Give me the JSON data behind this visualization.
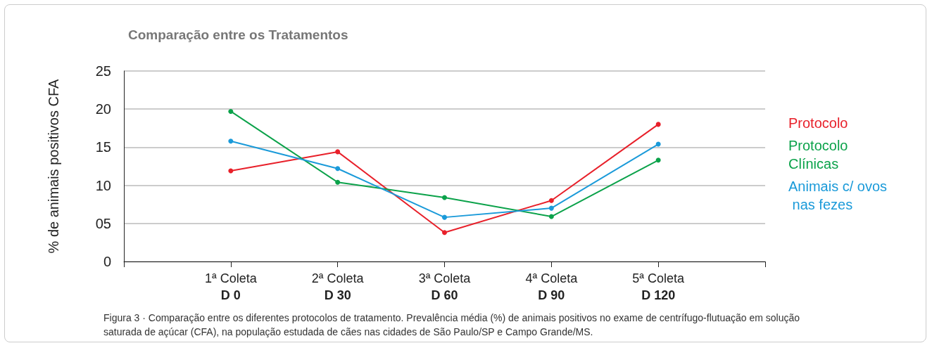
{
  "chart_data": {
    "type": "line",
    "title": "Comparação entre os Tratamentos",
    "ylabel": "% de animais positivos CFA",
    "categories": [
      "1ª Coleta\nD 0",
      "2ª Coleta\nD 30",
      "3ª Coleta\nD 60",
      "4ª Coleta\nD 90",
      "5ª Coleta\nD 120"
    ],
    "series": [
      {
        "name": "Protocolo",
        "color": "#e8202a",
        "values": [
          11.9,
          14.4,
          3.8,
          8.0,
          18.0
        ]
      },
      {
        "name": "Protocolo Clínicas",
        "color": "#0ba24a",
        "values": [
          19.7,
          10.4,
          8.4,
          5.9,
          13.3
        ]
      },
      {
        "name": "Animais c/ ovos nas fezes",
        "color": "#1a9ad9",
        "values": [
          15.8,
          12.2,
          5.8,
          7.0,
          15.4
        ]
      }
    ],
    "ylim": [
      0,
      25
    ],
    "yticks": [
      0,
      {
        "value": 5,
        "label": "05"
      },
      10,
      15,
      20,
      25
    ],
    "grid": "y",
    "legend": "right",
    "marker": "circle",
    "line_style": "solid",
    "annotations": [
      "Figura 3 · Comparação entre os diferentes protocolos de tratamento. Prevalência média (%) de animais positivos no exame de centrífugo-flutuação em solução saturada de açúcar (CFA), na população estudada de cães nas cidades de São Paulo/SP e Campo Grande/MS."
    ]
  }
}
